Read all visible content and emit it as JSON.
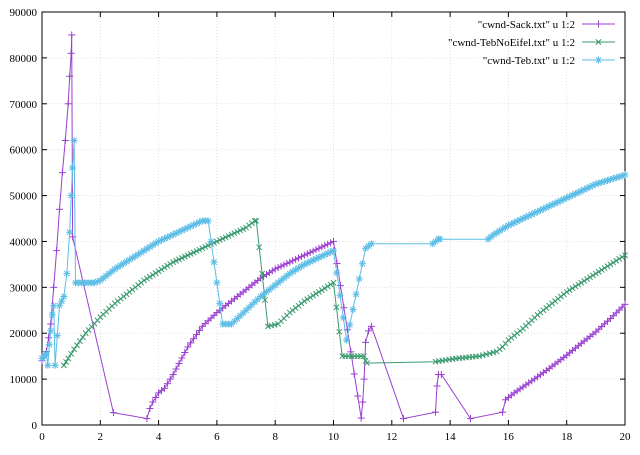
{
  "chart_data": {
    "type": "line",
    "title": "",
    "xlabel": "",
    "ylabel": "",
    "xlim": [
      0,
      20
    ],
    "ylim": [
      0,
      90000
    ],
    "x_ticks": [
      0,
      2,
      4,
      6,
      8,
      10,
      12,
      14,
      16,
      18,
      20
    ],
    "y_ticks": [
      0,
      10000,
      20000,
      30000,
      40000,
      50000,
      60000,
      70000,
      80000,
      90000
    ],
    "x_tick_labels": [
      "0",
      "2",
      "4",
      "6",
      "8",
      "10",
      "12",
      "14",
      "16",
      "18",
      "20"
    ],
    "y_tick_labels": [
      "0",
      "10000",
      "20000",
      "30000",
      "40000",
      "50000",
      "60000",
      "70000",
      "80000",
      "90000"
    ],
    "grid": true,
    "legend_position": "top-right",
    "series": [
      {
        "name": "\"cwnd-Sack.txt\" u 1:2",
        "color": "#9a3fd0",
        "marker": "plus",
        "x": [
          0.0,
          0.15,
          0.3,
          0.4,
          0.5,
          0.6,
          0.7,
          0.8,
          0.9,
          0.95,
          1.0,
          1.02,
          1.05,
          2.45,
          3.6,
          3.7,
          3.8,
          4.0,
          4.2,
          4.5,
          5.0,
          5.5,
          6.0,
          6.5,
          7.0,
          7.5,
          8.0,
          8.5,
          9.0,
          9.5,
          10.0,
          10.95,
          11.0,
          11.05,
          11.1,
          11.2,
          11.3,
          12.4,
          13.5,
          13.55,
          13.6,
          13.7,
          14.7,
          15.8,
          15.9,
          16.2,
          16.5,
          17.0,
          17.5,
          18.0,
          18.5,
          19.0,
          19.5,
          20.0
        ],
        "y": [
          14000,
          16000,
          22000,
          30000,
          38000,
          47000,
          55000,
          62000,
          70000,
          76000,
          81000,
          85000,
          41000,
          2700,
          1400,
          3600,
          5000,
          7000,
          8000,
          11000,
          17000,
          21500,
          24500,
          27000,
          29500,
          32000,
          34000,
          35500,
          37000,
          38500,
          40000,
          1500,
          5000,
          10000,
          18000,
          20500,
          21500,
          1400,
          2800,
          8500,
          11000,
          11000,
          1400,
          2800,
          5500,
          7000,
          8300,
          10500,
          12800,
          15200,
          17800,
          20300,
          23200,
          26300
        ]
      },
      {
        "name": "\"cwnd-TebNoEifel.txt\" u 1:2",
        "color": "#3a9a6e",
        "marker": "cross",
        "x": [
          0.75,
          0.9,
          1.1,
          1.5,
          2.0,
          2.5,
          3.0,
          3.5,
          4.0,
          4.5,
          5.0,
          5.5,
          6.0,
          6.5,
          7.0,
          7.3,
          7.35,
          7.75,
          8.1,
          8.5,
          9.0,
          9.5,
          10.0,
          10.3,
          11.05,
          11.1,
          11.15,
          13.5,
          14.2,
          15.0,
          15.6,
          15.8,
          16.0,
          16.5,
          17.0,
          17.5,
          18.0,
          18.5,
          19.0,
          19.5,
          20.0
        ],
        "y": [
          13000,
          14500,
          16500,
          20000,
          23500,
          26500,
          29000,
          31500,
          33500,
          35500,
          37000,
          38500,
          40000,
          41500,
          43000,
          44500,
          44500,
          21500,
          22000,
          24500,
          27000,
          29000,
          31000,
          15000,
          15000,
          14000,
          13500,
          13800,
          14500,
          15000,
          16000,
          17000,
          18500,
          21000,
          24000,
          26500,
          29000,
          31000,
          33000,
          35000,
          37000
        ]
      },
      {
        "name": "\"cwnd-Teb.txt\" u 1:2",
        "color": "#5bbde6",
        "marker": "star",
        "x": [
          0.0,
          0.15,
          0.2,
          0.25,
          0.3,
          0.35,
          0.4,
          0.45,
          0.6,
          0.75,
          0.85,
          0.95,
          1.0,
          1.05,
          1.1,
          1.15,
          1.8,
          2.0,
          2.5,
          3.0,
          3.5,
          4.0,
          4.5,
          5.0,
          5.5,
          5.7,
          6.2,
          6.5,
          7.0,
          7.5,
          8.0,
          8.5,
          9.0,
          9.5,
          10.0,
          10.45,
          11.1,
          11.2,
          11.3,
          13.4,
          13.6,
          13.65,
          15.3,
          15.5,
          16.0,
          16.5,
          17.0,
          17.5,
          18.0,
          18.5,
          19.0,
          19.5,
          20.0
        ],
        "y": [
          14500,
          15500,
          13000,
          17500,
          20500,
          24000,
          26000,
          13000,
          26000,
          28000,
          33000,
          42000,
          50000,
          56000,
          62000,
          31000,
          31000,
          31500,
          34000,
          36000,
          38000,
          40000,
          41500,
          43000,
          44500,
          44500,
          22000,
          22000,
          25000,
          28000,
          30500,
          33000,
          35000,
          36500,
          38000,
          18500,
          38500,
          39000,
          39500,
          39500,
          40500,
          40500,
          40500,
          41500,
          43500,
          45000,
          46500,
          48000,
          49500,
          51000,
          52500,
          53500,
          54500
        ]
      }
    ]
  }
}
